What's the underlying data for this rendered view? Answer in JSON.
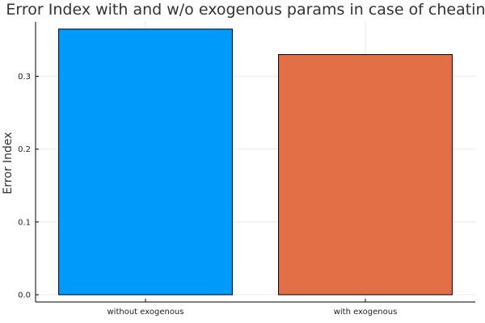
{
  "chart_data": {
    "type": "bar",
    "title": "Error Index with and w/o exogenous params in case of cheating",
    "xlabel": "",
    "ylabel": "Error Index",
    "categories": [
      "without exogenous",
      "with exogenous"
    ],
    "values": [
      0.365,
      0.33
    ],
    "ylim": [
      -0.01,
      0.375
    ],
    "yticks": [
      0.0,
      0.1,
      0.2,
      0.3
    ],
    "ytick_labels": [
      "0.0",
      "0.1",
      "0.2",
      "0.3"
    ],
    "colors": [
      "#009AFA",
      "#E36F47"
    ],
    "grid": true,
    "legend": "none"
  }
}
